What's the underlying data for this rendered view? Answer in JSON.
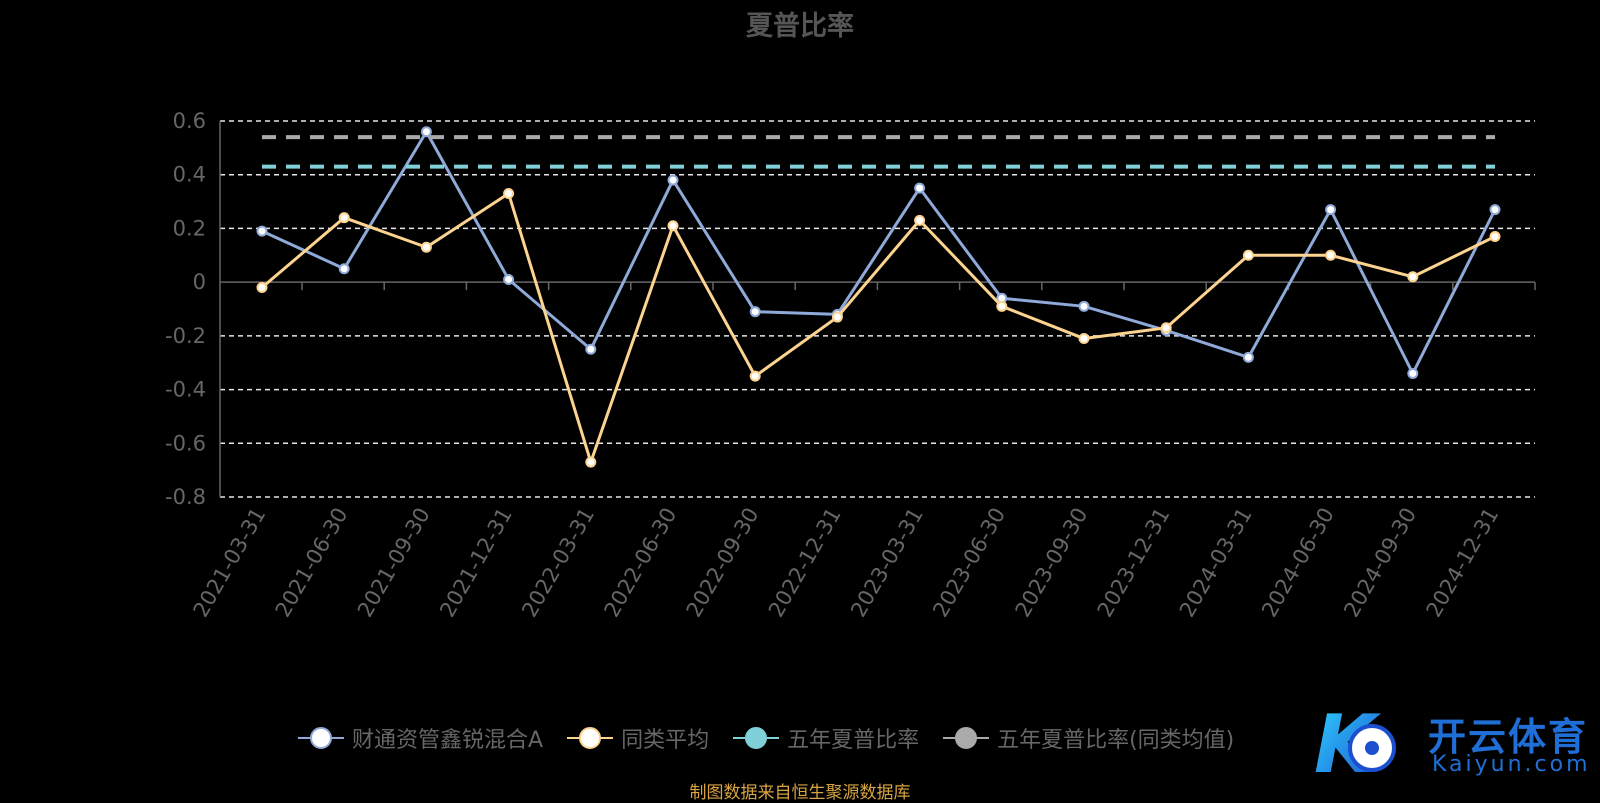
{
  "chart_data": {
    "type": "line",
    "title": "夏普比率",
    "xlabel": "",
    "ylabel": "",
    "ylim": [
      -0.8,
      0.6
    ],
    "yticks": [
      0.6,
      0.4,
      0.2,
      0,
      -0.2,
      -0.4,
      -0.6,
      -0.8
    ],
    "ytick_labels": [
      "0.6",
      "0.4",
      "0.2",
      "0",
      "-0.2",
      "-0.4",
      "-0.6",
      "-0.8"
    ],
    "grid": true,
    "legend_position": "bottom",
    "categories": [
      "2021-03-31",
      "2021-06-30",
      "2021-09-30",
      "2021-12-31",
      "2022-03-31",
      "2022-06-30",
      "2022-09-30",
      "2022-12-31",
      "2023-03-31",
      "2023-06-30",
      "2023-09-30",
      "2023-12-31",
      "2024-03-31",
      "2024-06-30",
      "2024-09-30",
      "2024-12-31"
    ],
    "series": [
      {
        "name": "财通资管鑫锐混合A",
        "color": "#8fa9d8",
        "values": [
          0.19,
          0.05,
          0.56,
          0.01,
          -0.25,
          0.38,
          -0.11,
          -0.12,
          0.35,
          -0.06,
          -0.09,
          -0.18,
          -0.28,
          0.27,
          -0.34,
          0.27
        ]
      },
      {
        "name": "同类平均",
        "color": "#fcd38f",
        "values": [
          -0.02,
          0.24,
          0.13,
          0.33,
          -0.67,
          0.21,
          -0.35,
          -0.13,
          0.23,
          -0.09,
          -0.21,
          -0.17,
          0.1,
          0.1,
          0.02,
          0.17
        ]
      },
      {
        "name": "五年夏普比率",
        "color": "#7fd0d8",
        "values": [
          0.43,
          0.43,
          0.43,
          0.43,
          0.43,
          0.43,
          0.43,
          0.43,
          0.43,
          0.43,
          0.43,
          0.43,
          0.43,
          0.43,
          0.43,
          0.43
        ]
      },
      {
        "name": "五年夏普比率(同类均值)",
        "color": "#aaaaaa",
        "values": [
          0.54,
          0.54,
          0.54,
          0.54,
          0.54,
          0.54,
          0.54,
          0.54,
          0.54,
          0.54,
          0.54,
          0.54,
          0.54,
          0.54,
          0.54,
          0.54
        ]
      }
    ]
  },
  "legend": {
    "items": [
      {
        "label": "财通资管鑫锐混合A",
        "color": "#8fa9d8",
        "marker_fill": "#ffffff"
      },
      {
        "label": "同类平均",
        "color": "#fcd38f",
        "marker_fill": "#ffffff"
      },
      {
        "label": "五年夏普比率",
        "color": "#7fd0d8",
        "marker_fill": "#7fd0d8"
      },
      {
        "label": "五年夏普比率(同类均值)",
        "color": "#aaaaaa",
        "marker_fill": "#aaaaaa"
      }
    ]
  },
  "source_note": "制图数据来自恒生聚源数据库",
  "logo": {
    "mark": "K",
    "text_cn": "开云体育",
    "text_en": "Kaiyun.com"
  }
}
